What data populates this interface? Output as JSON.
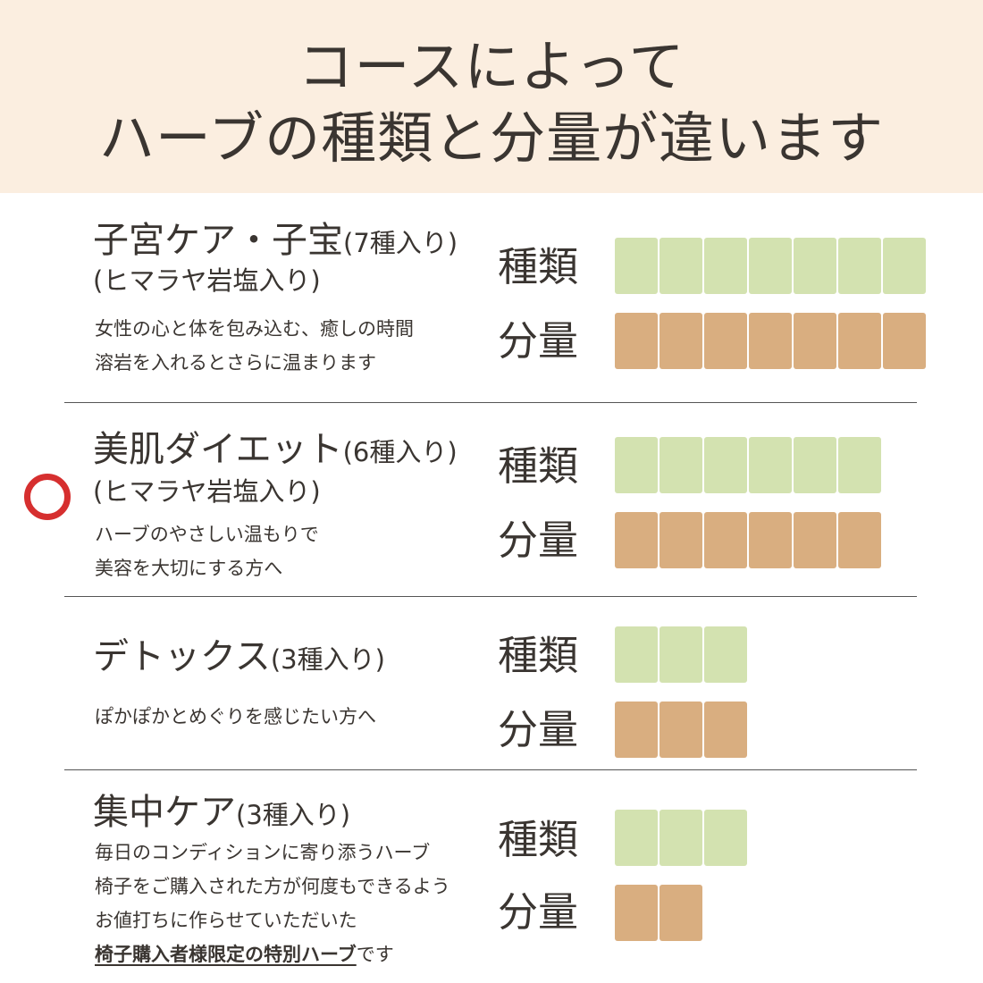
{
  "header": {
    "line1": "コースによって",
    "line2": "ハーブの種類と分量が違います"
  },
  "labels": {
    "kind": "種類",
    "amount": "分量"
  },
  "colors": {
    "kind_cell": "#d3e2b0",
    "amount_cell": "#d9ae80",
    "header_bg": "#fbeee0",
    "marker": "#d62f2f"
  },
  "courses": [
    {
      "name": "子宮ケア・子宝",
      "count": "(7種入り)",
      "subtitle": "(ヒマラヤ岩塩入り)",
      "desc": [
        "女性の心と体を包み込む、癒しの時間",
        "溶岩を入れるとさらに温まります"
      ],
      "kind_level": 7,
      "amount_level": 7
    },
    {
      "name": "美肌ダイエット",
      "count": "(6種入り)",
      "subtitle": "(ヒマラヤ岩塩入り)",
      "desc": [
        "ハーブのやさしい温もりで",
        "美容を大切にする方へ"
      ],
      "kind_level": 6,
      "amount_level": 6
    },
    {
      "name": "デトックス",
      "count": "(3種入り)",
      "subtitle": "",
      "desc": [
        "ぽかぽかとめぐりを感じたい方へ"
      ],
      "kind_level": 3,
      "amount_level": 3
    },
    {
      "name": "集中ケア",
      "count": "(3種入り)",
      "subtitle": "",
      "desc": [
        "毎日のコンディションに寄り添うハーブ",
        "椅子をご購入された方が何度もできるよう",
        "お値打ちに作らせていただいた"
      ],
      "desc_emphasis": "椅子購入者様限定の特別ハーブ",
      "desc_suffix": "です",
      "kind_level": 3,
      "amount_level": 2
    }
  ]
}
